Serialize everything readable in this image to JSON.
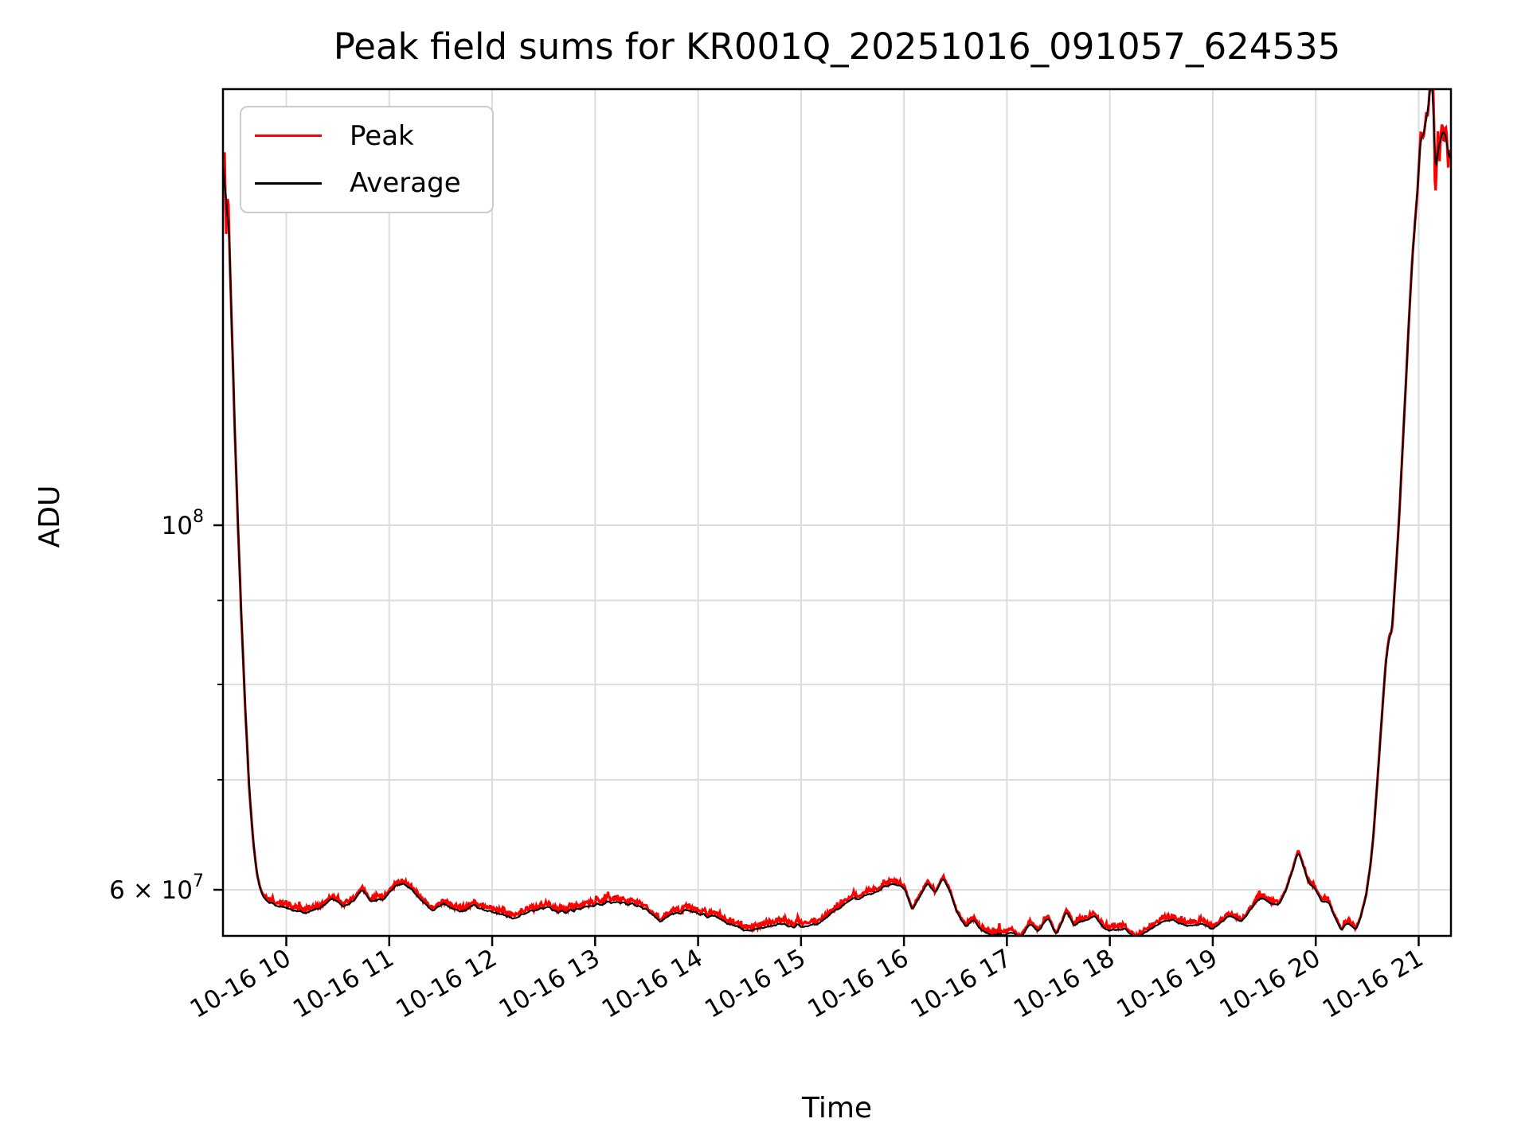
{
  "title": "Peak field sums for KR001Q_20251016_091057_624535",
  "axes": {
    "x_label": "Time",
    "y_label": "ADU"
  },
  "legend": {
    "entries": [
      {
        "label": "Peak",
        "color": "#ff0000"
      },
      {
        "label": "Average",
        "color": "#000000"
      }
    ]
  },
  "colors": {
    "peak": "#ff0000",
    "average": "#000000",
    "grid": "#dcdcdc",
    "spine": "#000000",
    "legend_border": "#cccccc",
    "background": "#ffffff"
  },
  "chart_data": {
    "type": "line",
    "title": "Peak field sums for KR001Q_20251016_091057_624535",
    "xlabel": "Time",
    "ylabel": "ADU",
    "y_scale": "log",
    "x_unit": "hour of day on 2025-10-16",
    "x_range_hours": [
      9.385,
      21.31
    ],
    "y_range_adu": [
      56300000,
      184000000
    ],
    "grid": true,
    "legend_position": "upper left",
    "x_ticks": [
      {
        "h": 10,
        "label": "10-16 10"
      },
      {
        "h": 11,
        "label": "10-16 11"
      },
      {
        "h": 12,
        "label": "10-16 12"
      },
      {
        "h": 13,
        "label": "10-16 13"
      },
      {
        "h": 14,
        "label": "10-16 14"
      },
      {
        "h": 15,
        "label": "10-16 15"
      },
      {
        "h": 16,
        "label": "10-16 16"
      },
      {
        "h": 17,
        "label": "10-16 17"
      },
      {
        "h": 18,
        "label": "10-16 18"
      },
      {
        "h": 19,
        "label": "10-16 19"
      },
      {
        "h": 20,
        "label": "10-16 20"
      },
      {
        "h": 21,
        "label": "10-16 21"
      }
    ],
    "y_ticks_major": [
      {
        "value_e7": 10,
        "prefix": "10",
        "exp": "8"
      },
      {
        "value_e7": 6,
        "prefix": "6 × 10",
        "exp": "7"
      }
    ],
    "y_ticks_minor_e7": [
      9,
      8,
      7
    ],
    "series": [
      {
        "name": "Peak",
        "color": "#ff0000",
        "keypoints_h_v1e7": [
          [
            9.385,
            16.2
          ],
          [
            9.4,
            16.9
          ],
          [
            9.415,
            15.0
          ],
          [
            9.435,
            16.0
          ],
          [
            9.45,
            14.6
          ],
          [
            9.47,
            13.2
          ],
          [
            9.5,
            11.4
          ],
          [
            9.53,
            10.0
          ],
          [
            9.56,
            8.9
          ],
          [
            9.6,
            7.75
          ],
          [
            9.64,
            6.9
          ],
          [
            9.68,
            6.4
          ],
          [
            9.72,
            6.1
          ],
          [
            9.76,
            5.97
          ],
          [
            9.82,
            5.9
          ],
          [
            9.92,
            5.86
          ],
          [
            10.05,
            5.84
          ],
          [
            10.18,
            5.8
          ],
          [
            10.32,
            5.84
          ],
          [
            10.45,
            5.93
          ],
          [
            10.55,
            5.86
          ],
          [
            10.65,
            5.9
          ],
          [
            10.74,
            6.0
          ],
          [
            10.82,
            5.9
          ],
          [
            10.95,
            5.92
          ],
          [
            11.05,
            6.02
          ],
          [
            11.12,
            6.06
          ],
          [
            11.22,
            6.0
          ],
          [
            11.35,
            5.88
          ],
          [
            11.43,
            5.82
          ],
          [
            11.52,
            5.88
          ],
          [
            11.62,
            5.84
          ],
          [
            11.72,
            5.82
          ],
          [
            11.82,
            5.87
          ],
          [
            11.92,
            5.84
          ],
          [
            12.05,
            5.8
          ],
          [
            12.18,
            5.77
          ],
          [
            12.3,
            5.8
          ],
          [
            12.42,
            5.83
          ],
          [
            12.55,
            5.86
          ],
          [
            12.65,
            5.81
          ],
          [
            12.78,
            5.83
          ],
          [
            12.92,
            5.86
          ],
          [
            13.05,
            5.88
          ],
          [
            13.2,
            5.9
          ],
          [
            13.35,
            5.88
          ],
          [
            13.5,
            5.84
          ],
          [
            13.64,
            5.73
          ],
          [
            13.75,
            5.8
          ],
          [
            13.9,
            5.83
          ],
          [
            14.05,
            5.79
          ],
          [
            14.2,
            5.76
          ],
          [
            14.35,
            5.7
          ],
          [
            14.49,
            5.66
          ],
          [
            14.62,
            5.69
          ],
          [
            14.78,
            5.72
          ],
          [
            14.92,
            5.7
          ],
          [
            15.05,
            5.69
          ],
          [
            15.18,
            5.73
          ],
          [
            15.32,
            5.82
          ],
          [
            15.5,
            5.92
          ],
          [
            15.68,
            5.97
          ],
          [
            15.82,
            6.02
          ],
          [
            15.95,
            6.05
          ],
          [
            16.01,
            6.0
          ],
          [
            16.08,
            5.83
          ],
          [
            16.16,
            5.95
          ],
          [
            16.23,
            6.06
          ],
          [
            16.3,
            5.97
          ],
          [
            16.38,
            6.1
          ],
          [
            16.45,
            5.98
          ],
          [
            16.52,
            5.8
          ],
          [
            16.6,
            5.7
          ],
          [
            16.68,
            5.75
          ],
          [
            16.76,
            5.66
          ],
          [
            16.85,
            5.62
          ],
          [
            16.95,
            5.63
          ],
          [
            17.05,
            5.65
          ],
          [
            17.13,
            5.6
          ],
          [
            17.22,
            5.72
          ],
          [
            17.3,
            5.66
          ],
          [
            17.4,
            5.77
          ],
          [
            17.48,
            5.63
          ],
          [
            17.58,
            5.82
          ],
          [
            17.65,
            5.7
          ],
          [
            17.75,
            5.74
          ],
          [
            17.85,
            5.79
          ],
          [
            17.95,
            5.68
          ],
          [
            18.05,
            5.66
          ],
          [
            18.15,
            5.68
          ],
          [
            18.25,
            5.6
          ],
          [
            18.35,
            5.66
          ],
          [
            18.48,
            5.72
          ],
          [
            18.58,
            5.76
          ],
          [
            18.68,
            5.72
          ],
          [
            18.78,
            5.7
          ],
          [
            18.9,
            5.72
          ],
          [
            19.0,
            5.68
          ],
          [
            19.07,
            5.73
          ],
          [
            19.17,
            5.79
          ],
          [
            19.27,
            5.73
          ],
          [
            19.35,
            5.82
          ],
          [
            19.42,
            5.9
          ],
          [
            19.5,
            5.93
          ],
          [
            19.57,
            5.88
          ],
          [
            19.63,
            5.86
          ],
          [
            19.7,
            5.97
          ],
          [
            19.76,
            6.12
          ],
          [
            19.83,
            6.33
          ],
          [
            19.88,
            6.2
          ],
          [
            19.93,
            6.06
          ],
          [
            20.0,
            6.0
          ],
          [
            20.06,
            5.9
          ],
          [
            20.12,
            5.91
          ],
          [
            20.18,
            5.78
          ],
          [
            20.25,
            5.67
          ],
          [
            20.31,
            5.73
          ],
          [
            20.39,
            5.67
          ],
          [
            20.44,
            5.78
          ],
          [
            20.49,
            5.95
          ],
          [
            20.53,
            6.2
          ],
          [
            20.56,
            6.46
          ],
          [
            20.6,
            7.0
          ],
          [
            20.64,
            7.6
          ],
          [
            20.68,
            8.25
          ],
          [
            20.71,
            8.53
          ],
          [
            20.74,
            8.6
          ],
          [
            20.78,
            9.4
          ],
          [
            20.81,
            10.1
          ],
          [
            20.84,
            11.0
          ],
          [
            20.87,
            12.0
          ],
          [
            20.9,
            13.1
          ],
          [
            20.94,
            14.6
          ],
          [
            20.99,
            16.0
          ],
          [
            21.02,
            17.35
          ],
          [
            21.045,
            17.15
          ],
          [
            21.07,
            17.7
          ],
          [
            21.09,
            17.78
          ],
          [
            21.11,
            18.5
          ],
          [
            21.13,
            18.6
          ],
          [
            21.145,
            18.3
          ],
          [
            21.16,
            15.7
          ],
          [
            21.175,
            16.6
          ],
          [
            21.19,
            17.5
          ],
          [
            21.2,
            16.5
          ],
          [
            21.215,
            17.3
          ],
          [
            21.23,
            17.6
          ],
          [
            21.245,
            17.0
          ],
          [
            21.26,
            17.55
          ],
          [
            21.275,
            17.2
          ],
          [
            21.285,
            16.4
          ],
          [
            21.295,
            16.9
          ],
          [
            21.31,
            16.8
          ]
        ]
      },
      {
        "name": "Average",
        "color": "#000000",
        "derived": "slightly-smoothed version of Peak, drawn on top"
      }
    ]
  }
}
